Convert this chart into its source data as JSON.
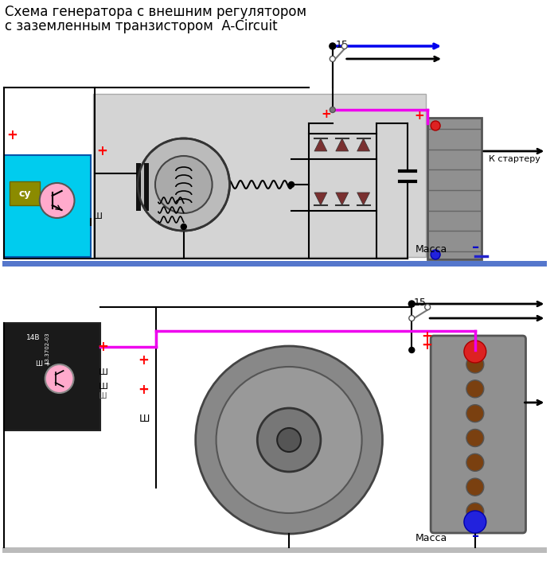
{
  "title_line1": "Схема генератора с внешним регулятором",
  "title_line2": "с заземленным транзистором  A-Circuit",
  "title_fontsize": 12,
  "bg_color": "#ffffff",
  "gen_bg": "#d4d4d4",
  "reg_color": "#00ccee",
  "wire_black": "#000000",
  "wire_pink": "#ee00ee",
  "wire_blue": "#0000ee",
  "diode_color": "#7a3030",
  "bat_color": "#909090",
  "massa_text": "Масса",
  "k_starteru_text": "К стартеру",
  "label_15": "15",
  "ground_bar_color1": "#5577cc",
  "ground_bar_color2": "#bbbbbb"
}
